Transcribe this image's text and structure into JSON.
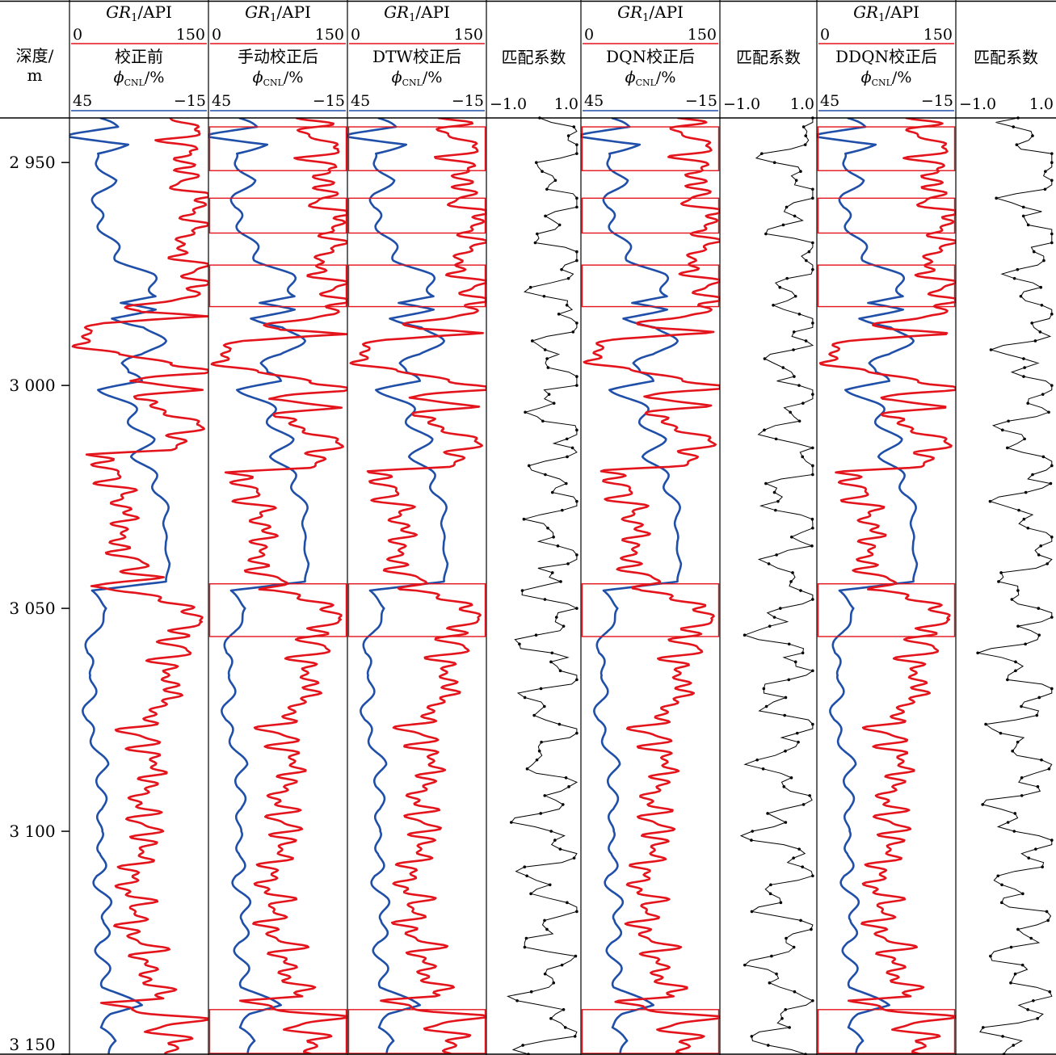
{
  "depth_track": {
    "label_line1": "深度/",
    "label_line2": "m"
  },
  "chart_data": {
    "type": "line",
    "title": "",
    "depth_axis": {
      "label": "深度/m",
      "range": [
        2940,
        3150
      ],
      "ticks": [
        2950,
        3000,
        3050,
        3100,
        3150
      ],
      "tick_labels": [
        "2 950",
        "3 000",
        "3 050",
        "3 100",
        "3 150"
      ]
    },
    "colors": {
      "gr": "#e3141b",
      "cnl": "#1f4fa8",
      "match": "#000000",
      "box": "#e3141b"
    },
    "gr_scale": {
      "label_main": "GR",
      "label_sub": "1",
      "label_unit": "/API",
      "min_label": "0",
      "max_label": "150",
      "range": [
        0,
        150
      ]
    },
    "cnl_scale": {
      "label_main": "ϕ",
      "label_sub": "CNL",
      "label_unit": "/%",
      "left_label": "45",
      "right_label": "−15",
      "range": [
        45,
        -15
      ]
    },
    "match_scale": {
      "title": "匹配系数",
      "min_label": "−1.0",
      "max_label": "1.0",
      "range": [
        -1,
        1
      ]
    },
    "curve_tracks": [
      {
        "name": "校正前",
        "shift_pattern": "none",
        "boxes": []
      },
      {
        "name": "手动校正后",
        "shift_pattern": "manual",
        "boxes": [
          [
            2942,
            2952
          ],
          [
            2958,
            2966
          ],
          [
            2973,
            2982.5
          ],
          [
            3044.5,
            3056.5
          ],
          [
            3140,
            3150
          ]
        ]
      },
      {
        "name": "DTW校正后",
        "shift_pattern": "dtw",
        "boxes": [
          [
            2942,
            2952
          ],
          [
            2958,
            2966
          ],
          [
            2973,
            2982.5
          ],
          [
            3044.5,
            3056.5
          ],
          [
            3140,
            3150
          ]
        ]
      },
      {
        "name": "DQN校正后",
        "shift_pattern": "dqn",
        "boxes": [
          [
            2942,
            2952
          ],
          [
            2958,
            2966
          ],
          [
            2973,
            2982.5
          ],
          [
            3044.5,
            3056.5
          ],
          [
            3140,
            3150
          ]
        ]
      },
      {
        "name": "DDQN校正后",
        "shift_pattern": "ddqn",
        "boxes": [
          [
            2942,
            2952
          ],
          [
            2958,
            2966
          ],
          [
            2973,
            2982.5
          ],
          [
            3044.5,
            3056.5
          ],
          [
            3140,
            3150
          ]
        ]
      }
    ],
    "match_tracks": [
      {
        "name": "匹配系数",
        "after": "DTW校正后"
      },
      {
        "name": "匹配系数",
        "after": "DQN校正后"
      },
      {
        "name": "匹配系数",
        "after": "DDQN校正后"
      }
    ]
  }
}
